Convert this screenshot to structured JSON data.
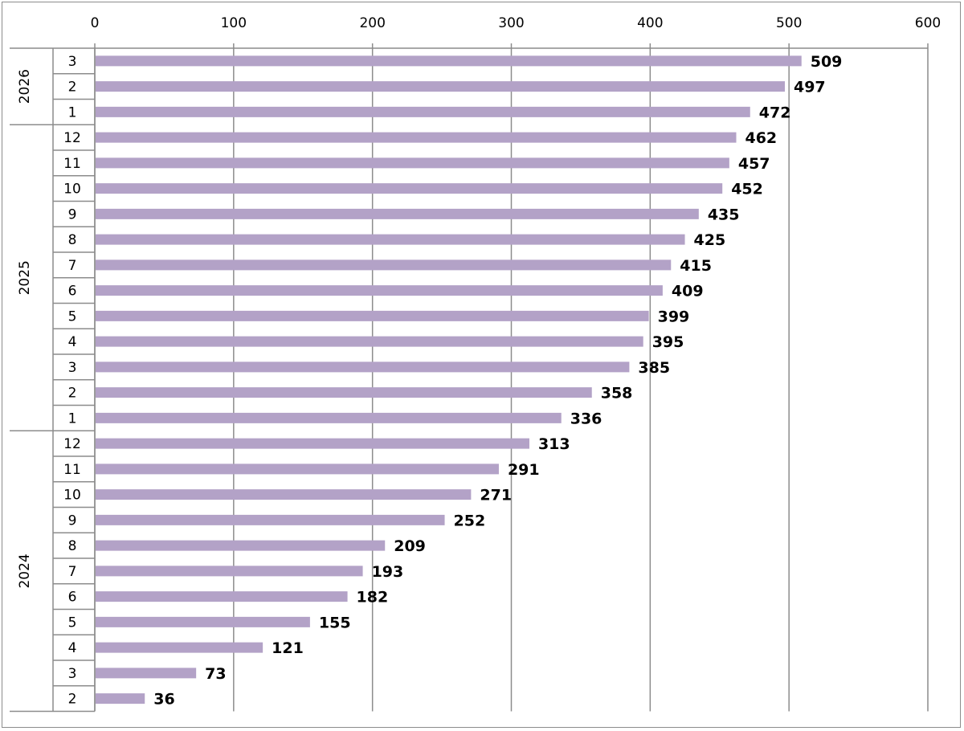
{
  "chart_data": {
    "type": "bar",
    "orientation": "horizontal",
    "title": "",
    "xlabel": "",
    "ylabel": "",
    "xlim": [
      0,
      600
    ],
    "x_ticks": [
      0,
      100,
      200,
      300,
      400,
      500,
      600
    ],
    "x_axis_position": "top",
    "grid": true,
    "legend": "none",
    "bar_color": "#b3a2c7",
    "groups": [
      {
        "label": "2026",
        "categories": [
          "3",
          "2",
          "1"
        ],
        "values": [
          509,
          497,
          472
        ]
      },
      {
        "label": "2025",
        "categories": [
          "12",
          "11",
          "10",
          "9",
          "8",
          "7",
          "6",
          "5",
          "4",
          "3",
          "2",
          "1"
        ],
        "values": [
          462,
          457,
          452,
          435,
          425,
          415,
          409,
          399,
          395,
          385,
          358,
          336
        ]
      },
      {
        "label": "2024",
        "categories": [
          "12",
          "11",
          "10",
          "9",
          "8",
          "7",
          "6",
          "5",
          "4",
          "3",
          "2"
        ],
        "values": [
          313,
          291,
          271,
          252,
          209,
          193,
          182,
          155,
          121,
          73,
          36
        ]
      }
    ]
  }
}
